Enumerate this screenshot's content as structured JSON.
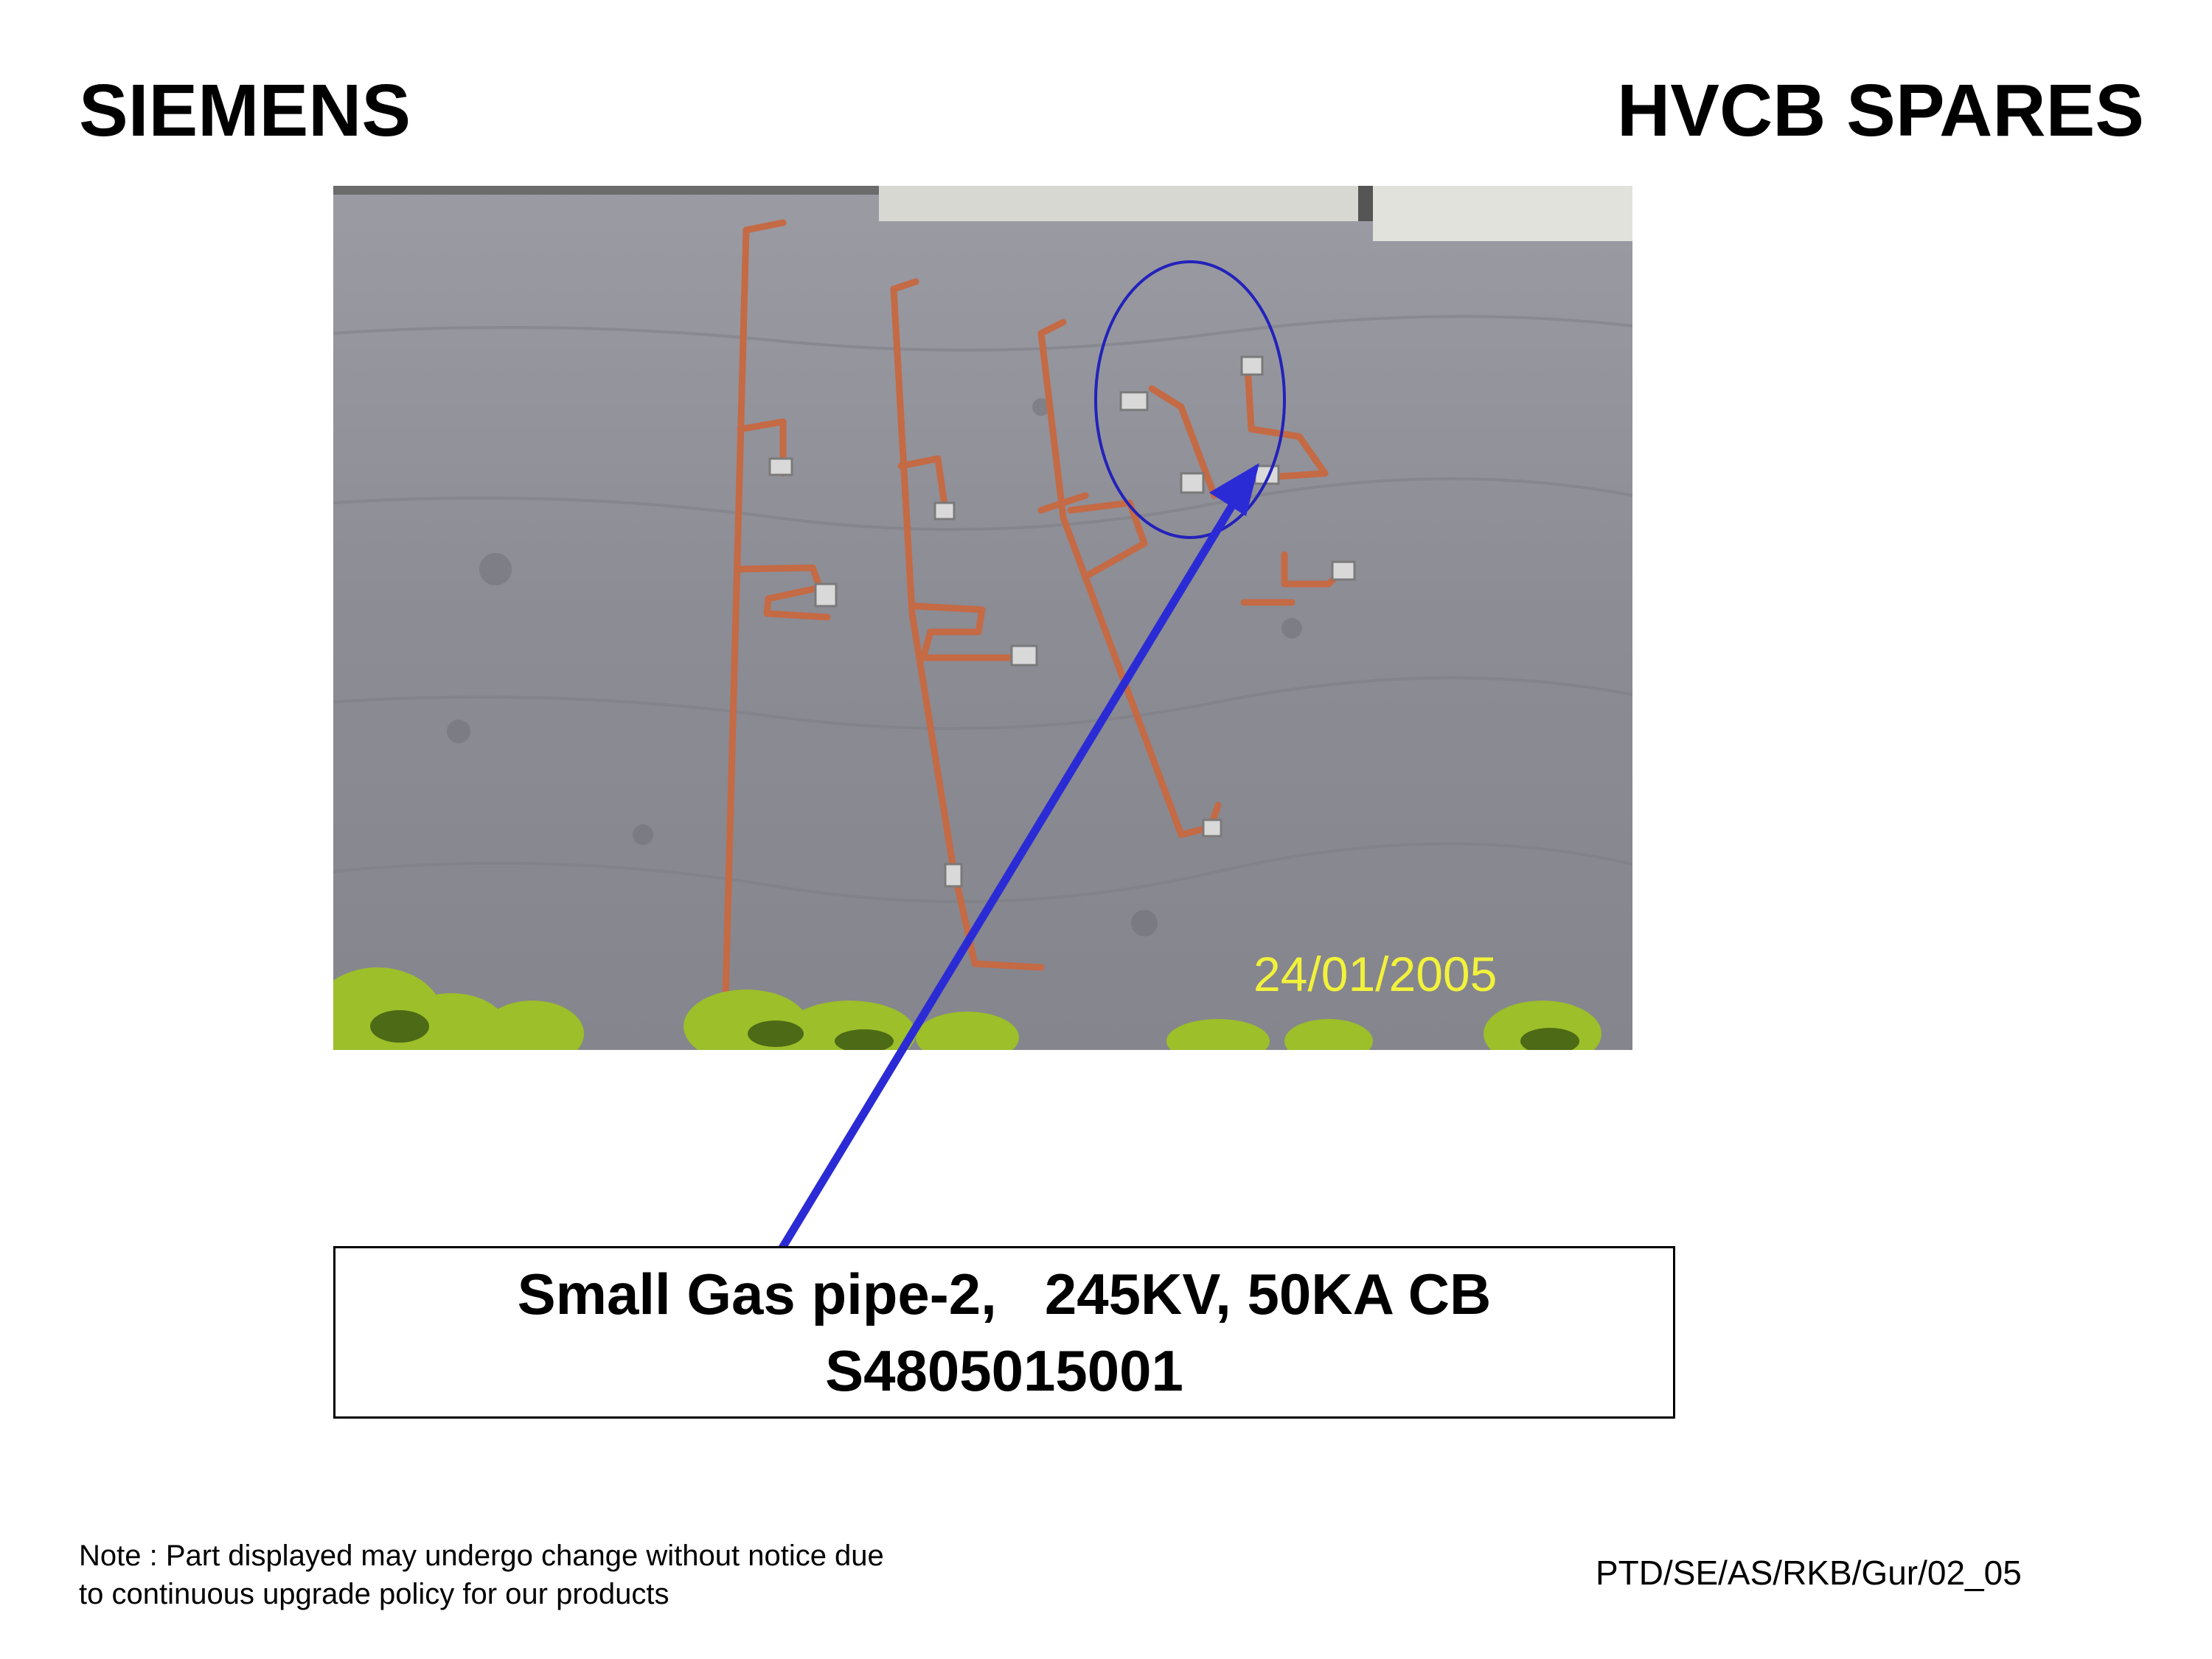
{
  "header": {
    "brand": "SIEMENS",
    "section": "HVCB SPARES"
  },
  "photo": {
    "date_stamp": "24/01/2005",
    "highlight_color": "#2222bb"
  },
  "caption": {
    "line1": "Small Gas pipe-2,   245KV, 50KA CB",
    "line2": "S4805015001"
  },
  "footer": {
    "note_line1": "Note : Part displayed may undergo change without notice due",
    "note_line2": "to continuous upgrade policy for our products",
    "doc_ref": "PTD/SE/AS/RKB/Gur/02_05"
  },
  "colors": {
    "arrow": "#2b2bd6",
    "pipe": "#c46a45",
    "ground": "#8f8f97",
    "date_stamp": "#f2f23a"
  }
}
